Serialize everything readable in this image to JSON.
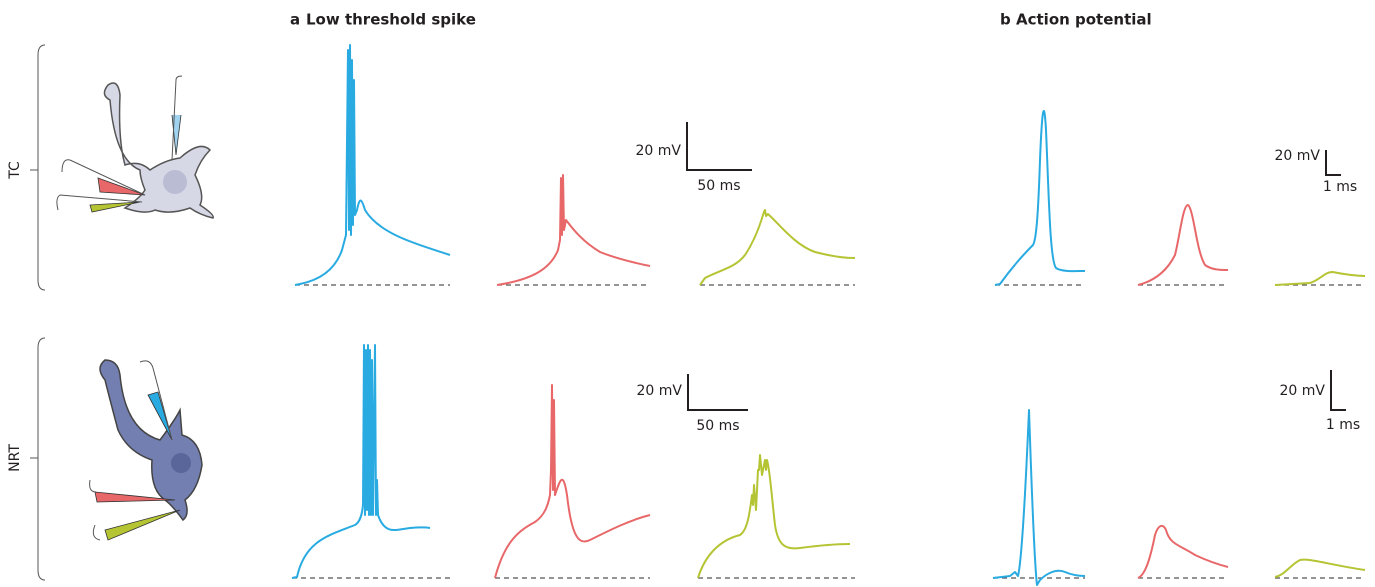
{
  "panels": [
    {
      "letter": "a",
      "title": "Low threshold spike"
    },
    {
      "letter": "b",
      "title": "Action potential"
    }
  ],
  "rows": [
    {
      "label": "TC"
    },
    {
      "label": "NRT"
    }
  ],
  "scale_bars": [
    {
      "voltage": "20 mV",
      "time": "50 ms"
    },
    {
      "voltage": "20 mV",
      "time": "1 ms"
    },
    {
      "voltage": "20 mV",
      "time": "50 ms"
    },
    {
      "voltage": "20 mV",
      "time": "1 ms"
    }
  ]
}
